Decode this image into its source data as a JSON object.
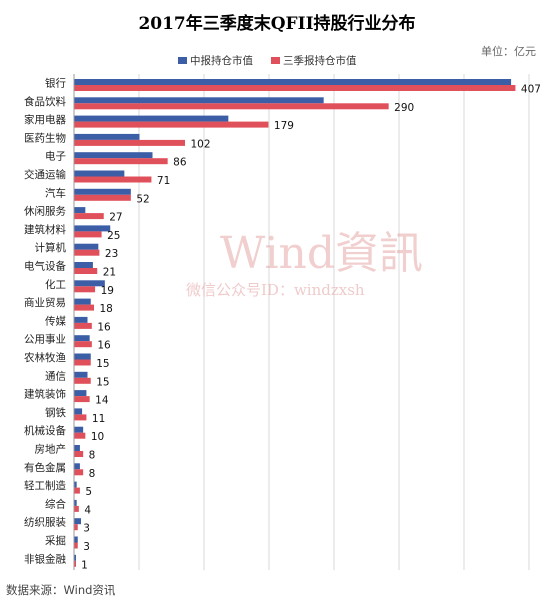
{
  "chart_data": {
    "type": "bar",
    "orientation": "horizontal",
    "title": "2017年三季度末QFII持股行业分布",
    "unit_label": "单位：亿元",
    "categories": [
      "银行",
      "食品饮料",
      "家用电器",
      "医药生物",
      "电子",
      "交通运输",
      "汽车",
      "休闲服务",
      "建筑材料",
      "计算机",
      "电气设备",
      "化工",
      "商业贸易",
      "传媒",
      "公用事业",
      "农林牧渔",
      "通信",
      "建筑装饰",
      "钢铁",
      "机械设备",
      "房地产",
      "有色金属",
      "轻工制造",
      "综合",
      "纺织服装",
      "采掘",
      "非银金融"
    ],
    "series": [
      {
        "name": "中报持仓市值",
        "color": "#3b5ea6",
        "values": [
          403,
          230,
          142,
          60,
          72,
          46,
          52,
          10,
          33,
          22,
          17,
          28,
          15,
          12,
          14,
          15,
          12,
          11,
          7,
          8,
          5,
          5,
          2,
          2,
          6,
          3,
          1
        ]
      },
      {
        "name": "三季报持仓市值",
        "color": "#e0505a",
        "values": [
          407,
          290,
          179,
          102,
          86,
          71,
          52,
          27,
          25,
          23,
          21,
          19,
          18,
          16,
          16,
          15,
          15,
          14,
          11,
          10,
          8,
          8,
          5,
          4,
          3,
          3,
          1
        ]
      }
    ],
    "data_labels": [
      "407",
      "290",
      "179",
      "102",
      "86",
      "71",
      "52",
      "27",
      "25",
      "23",
      "21",
      "19",
      "18",
      "16",
      "16",
      "15",
      "15",
      "14",
      "11",
      "10",
      "8",
      "8",
      "5",
      "4",
      "3",
      "3",
      "1"
    ],
    "xlim": [
      0,
      420
    ],
    "grid": true,
    "legend_position": "top"
  },
  "watermark": {
    "brand": "Wind資訊",
    "account": "微信公众号ID：windzxsh"
  },
  "source": "数据来源：Wind资讯"
}
